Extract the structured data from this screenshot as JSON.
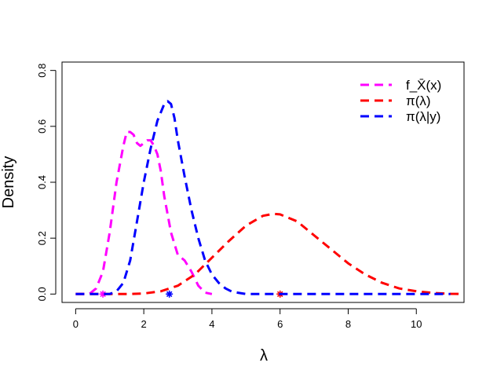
{
  "chart_data": {
    "type": "line",
    "xlabel": "λ",
    "ylabel": "Density",
    "xlim": [
      -0.4,
      11.4
    ],
    "ylim": [
      -0.03,
      0.83
    ],
    "xticks": [
      0,
      2,
      4,
      6,
      8,
      10
    ],
    "xtick_labels": [
      "0",
      "2",
      "4",
      "6",
      "8",
      "10"
    ],
    "yticks": [
      0.0,
      0.2,
      0.4,
      0.6,
      0.8
    ],
    "ytick_labels": [
      "0.0",
      "0.2",
      "0.4",
      "0.6",
      "0.8"
    ],
    "grid": false,
    "legend_placement": "top-right",
    "series": [
      {
        "name": "f_X̄(x)",
        "color": "#ff00ff",
        "style": "dashed",
        "x": [
          0.0,
          0.4,
          0.6,
          0.8,
          1.0,
          1.2,
          1.4,
          1.5,
          1.6,
          1.7,
          1.8,
          1.9,
          2.0,
          2.1,
          2.2,
          2.3,
          2.4,
          2.5,
          2.6,
          2.8,
          3.0,
          3.2,
          3.4,
          3.6,
          3.8,
          4.0
        ],
        "y": [
          0.0,
          0.0,
          0.02,
          0.08,
          0.22,
          0.4,
          0.53,
          0.58,
          0.58,
          0.57,
          0.54,
          0.53,
          0.54,
          0.55,
          0.55,
          0.53,
          0.5,
          0.44,
          0.35,
          0.22,
          0.14,
          0.12,
          0.08,
          0.03,
          0.005,
          0.0
        ],
        "marker": {
          "x": 0.8,
          "y": 0.0,
          "symbol": "star"
        }
      },
      {
        "name": "π(λ)",
        "color": "#ff0000",
        "style": "dashed",
        "x": [
          0.0,
          1.0,
          1.5,
          2.0,
          2.5,
          3.0,
          3.5,
          4.0,
          4.5,
          5.0,
          5.5,
          5.8,
          6.0,
          6.5,
          7.0,
          7.5,
          8.0,
          8.5,
          9.0,
          9.5,
          10.0,
          10.5,
          11.0,
          11.4
        ],
        "y": [
          0.0,
          0.0,
          0.0,
          0.002,
          0.01,
          0.03,
          0.07,
          0.13,
          0.19,
          0.245,
          0.28,
          0.287,
          0.285,
          0.26,
          0.21,
          0.16,
          0.11,
          0.07,
          0.04,
          0.02,
          0.01,
          0.004,
          0.001,
          0.0
        ],
        "marker": {
          "x": 6.0,
          "y": 0.0,
          "symbol": "star"
        }
      },
      {
        "name": "π(λ|y)",
        "color": "#0000ff",
        "style": "dashed",
        "x": [
          0.0,
          1.0,
          1.2,
          1.4,
          1.6,
          1.8,
          2.0,
          2.2,
          2.4,
          2.6,
          2.7,
          2.8,
          2.9,
          3.0,
          3.2,
          3.4,
          3.6,
          3.8,
          4.0,
          4.2,
          4.4,
          4.6,
          5.0,
          6.0,
          8.0,
          10.0,
          11.0
        ],
        "y": [
          0.0,
          0.0,
          0.01,
          0.04,
          0.12,
          0.26,
          0.4,
          0.52,
          0.62,
          0.68,
          0.69,
          0.68,
          0.63,
          0.55,
          0.42,
          0.3,
          0.2,
          0.12,
          0.07,
          0.04,
          0.02,
          0.008,
          0.0,
          0.0,
          0.0,
          0.0,
          0.0
        ],
        "marker": {
          "x": 2.75,
          "y": 0.0,
          "symbol": "star"
        }
      }
    ]
  }
}
